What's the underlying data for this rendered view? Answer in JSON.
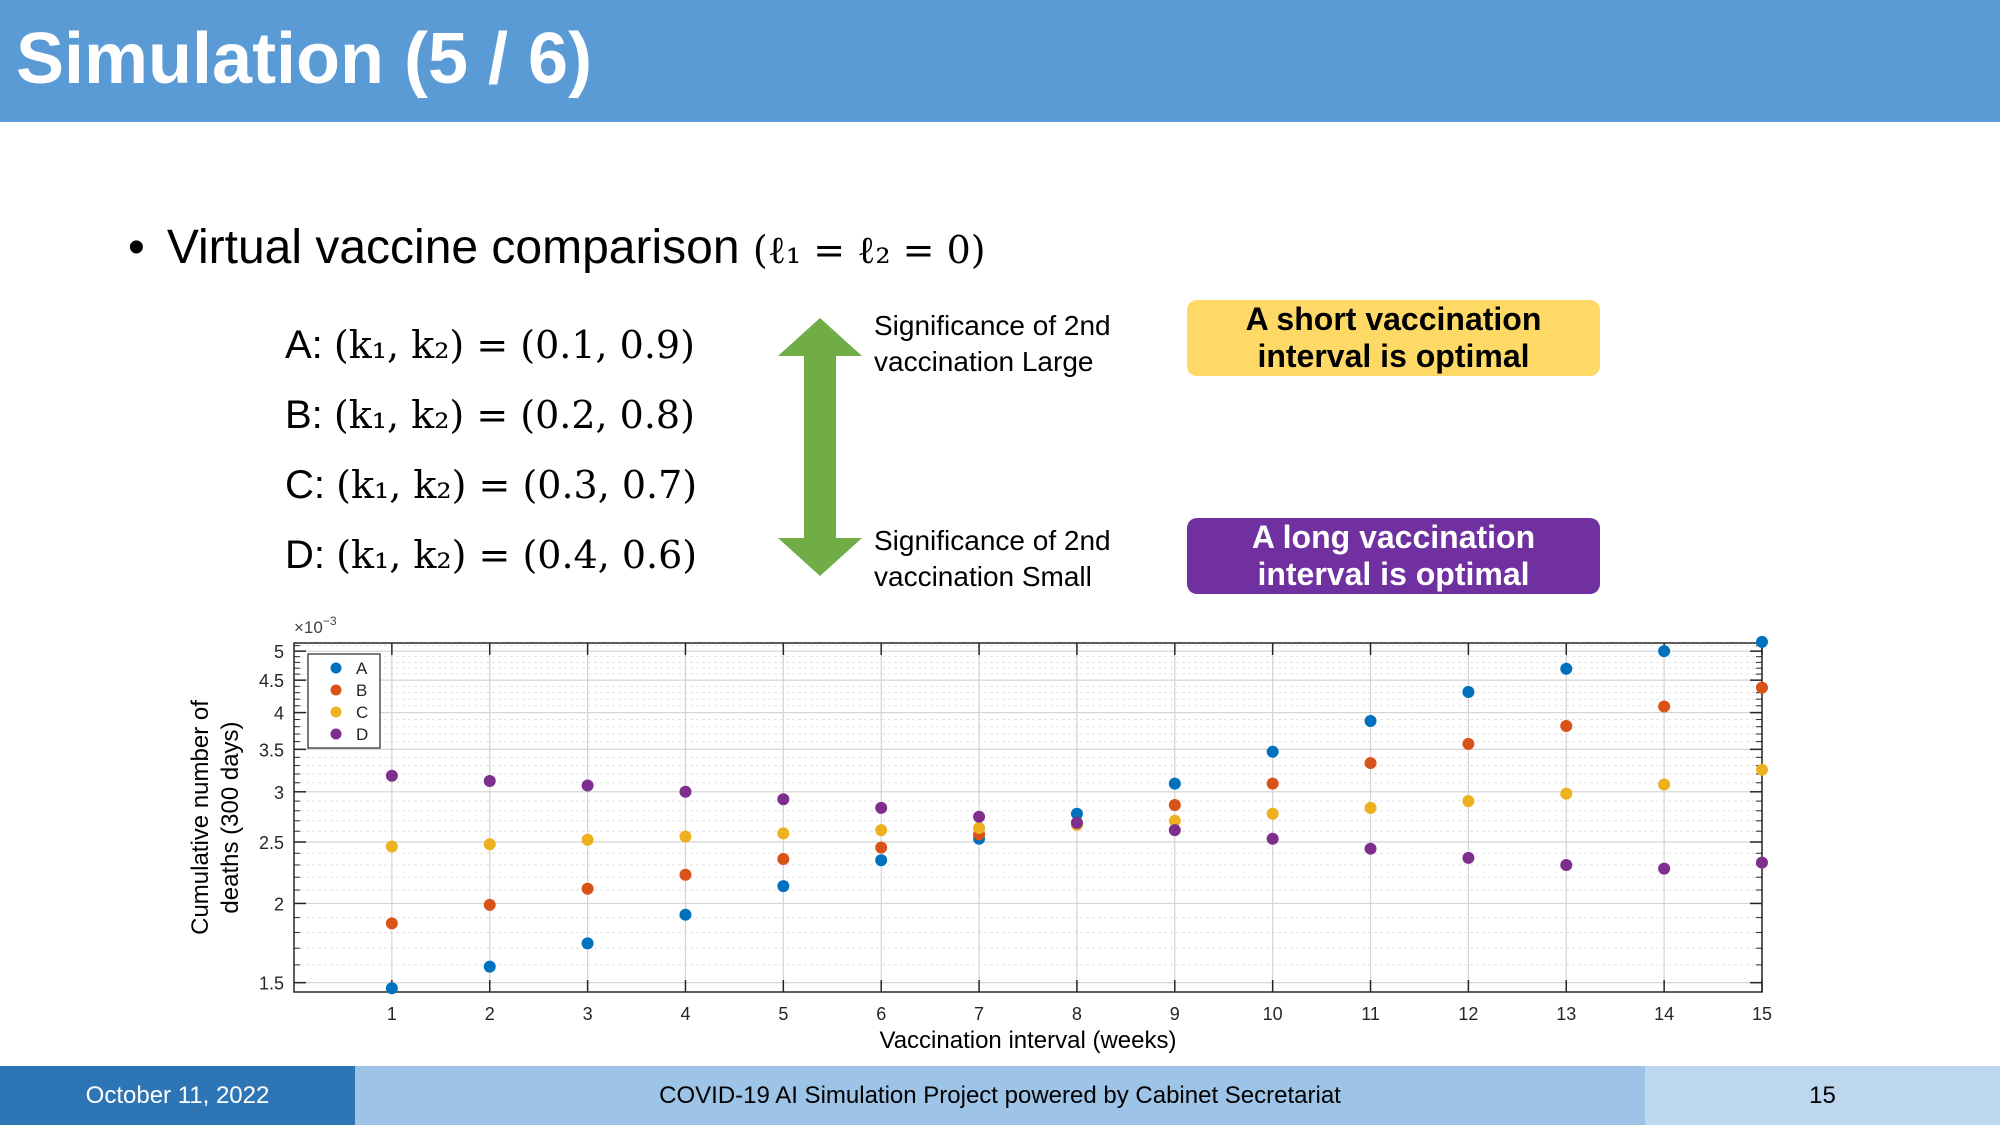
{
  "slide": {
    "title": "Simulation (5 / 6)",
    "bullet_text": "Virtual vaccine comparison",
    "bullet_math": "(ℓ₁ = ℓ₂ = 0)",
    "vaccines": [
      {
        "label": "A:",
        "math": "(k₁, k₂) = (0.1, 0.9)"
      },
      {
        "label": "B:",
        "math": "(k₁, k₂) = (0.2, 0.8)"
      },
      {
        "label": "C:",
        "math": "(k₁, k₂) = (0.3, 0.7)"
      },
      {
        "label": "D:",
        "math": "(k₁, k₂) = (0.4, 0.6)"
      }
    ],
    "significance_large": [
      "Significance of 2nd",
      "vaccination  Large"
    ],
    "significance_small": [
      "Significance of 2nd",
      "vaccination  Small"
    ],
    "callout_short": [
      "A short vaccination",
      "interval is optimal"
    ],
    "callout_long": [
      "A long vaccination",
      "interval is optimal"
    ],
    "colors": {
      "header": "#5b9bd5",
      "arrow": "#70ad47",
      "callout_short": "#ffd966",
      "callout_long": "#7030a0"
    }
  },
  "footer": {
    "date": "October 11, 2022",
    "project": "COVID-19 AI Simulation Project powered by Cabinet Secretariat",
    "page": "15"
  },
  "chart_data": {
    "type": "scatter",
    "xlabel": "Vaccination interval (weeks)",
    "ylabel": [
      "Cumulative number of",
      "deaths (300 days)"
    ],
    "y_multiplier": "×10",
    "y_exponent": "−3",
    "yscale": "log",
    "xlim": [
      0,
      15
    ],
    "ylim": [
      1.45,
      5.15
    ],
    "xticks": [
      1,
      2,
      3,
      4,
      5,
      6,
      7,
      8,
      9,
      10,
      11,
      12,
      13,
      14,
      15
    ],
    "yticks": [
      1.5,
      2,
      2.5,
      3,
      3.5,
      4,
      4.5,
      5
    ],
    "ytick_labels": [
      "1.5",
      "2",
      "2.5",
      "3",
      "3.5",
      "4",
      "4.5",
      "5"
    ],
    "grid": true,
    "legend_position": "top-left",
    "x": [
      1,
      2,
      3,
      4,
      5,
      6,
      7,
      8,
      9,
      10,
      11,
      12,
      13,
      14,
      15
    ],
    "series": [
      {
        "name": "A",
        "color": "#0072bd",
        "values": [
          1.47,
          1.59,
          1.73,
          1.92,
          2.13,
          2.34,
          2.53,
          2.77,
          3.09,
          3.47,
          3.88,
          4.31,
          4.69,
          5.0,
          5.17
        ]
      },
      {
        "name": "B",
        "color": "#d95319",
        "values": [
          1.86,
          1.99,
          2.11,
          2.22,
          2.35,
          2.45,
          2.57,
          2.68,
          2.86,
          3.09,
          3.33,
          3.57,
          3.81,
          4.09,
          4.38
        ]
      },
      {
        "name": "C",
        "color": "#edb120",
        "values": [
          2.46,
          2.48,
          2.52,
          2.55,
          2.58,
          2.61,
          2.63,
          2.66,
          2.7,
          2.77,
          2.83,
          2.9,
          2.98,
          3.08,
          3.25
        ]
      },
      {
        "name": "D",
        "color": "#7e2f8e",
        "values": [
          3.18,
          3.12,
          3.07,
          3.0,
          2.92,
          2.83,
          2.74,
          2.68,
          2.61,
          2.53,
          2.44,
          2.36,
          2.3,
          2.27,
          2.32
        ]
      }
    ]
  }
}
